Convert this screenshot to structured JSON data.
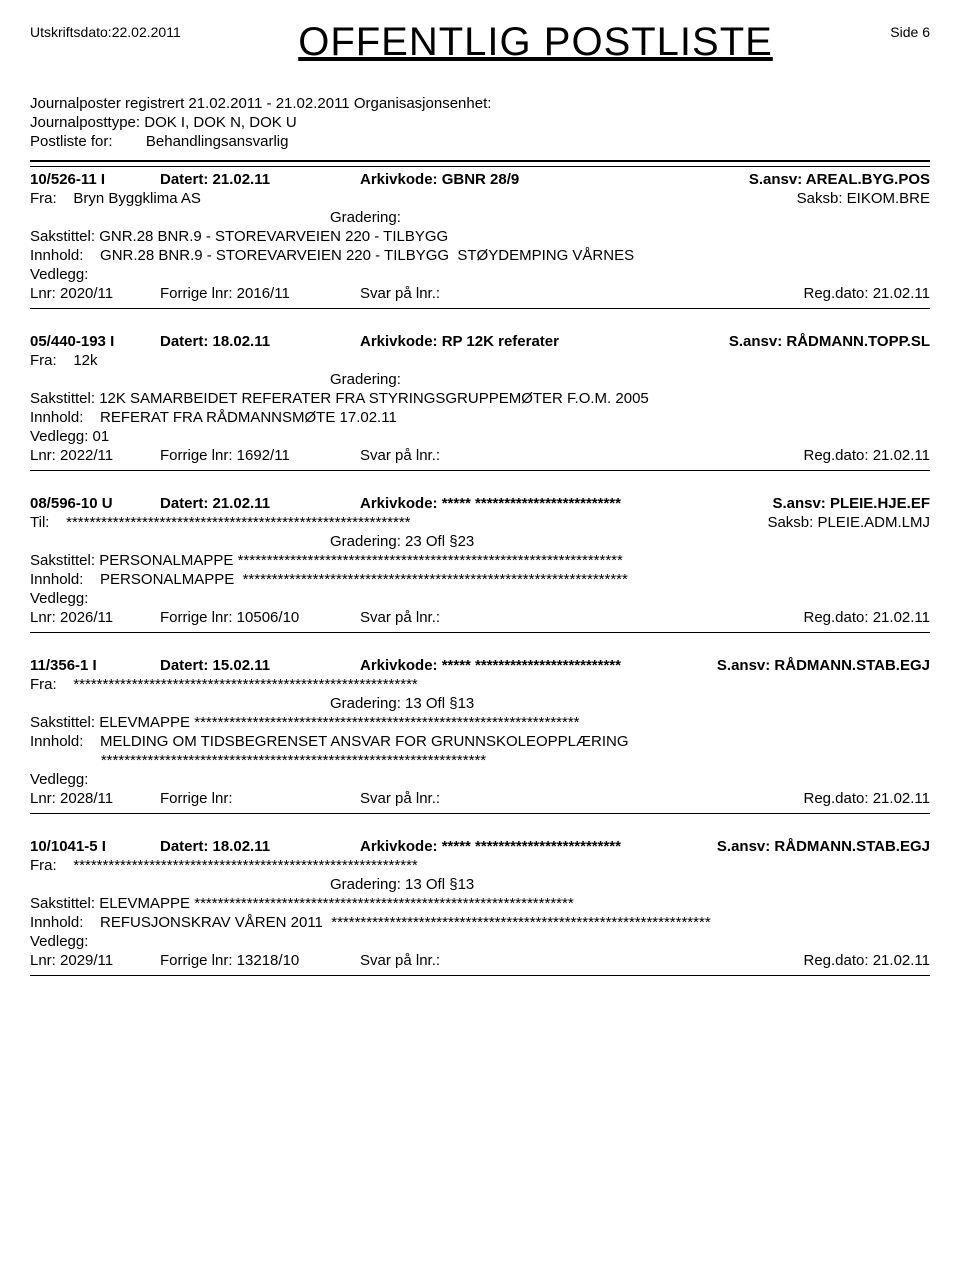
{
  "header": {
    "print_date_label": "Utskriftsdato:",
    "print_date": "22.02.2011",
    "title": "OFFENTLIG POSTLISTE",
    "page_label": "Side 6"
  },
  "meta": {
    "line1": "Journalposter registrert  21.02.2011  -  21.02.2011  Organisasjonsenhet:",
    "line2_label": "Journalposttype:",
    "line2_value": "DOK I, DOK N, DOK U",
    "line3_label": "Postliste for:",
    "line3_value": "Behandlingsansvarlig"
  },
  "entries": [
    {
      "id": "10/526-11  I",
      "datert": "Datert: 21.02.11",
      "arkiv": "Arkivkode: GBNR 28/9",
      "sansv": "S.ansv: AREAL.BYG.POS",
      "from_label": "Fra:",
      "from_value": "Bryn Byggklima AS",
      "saksb": "Saksb:  EIKOM.BRE",
      "gradering": "Gradering:",
      "sakstittel": "Sakstittel: GNR.28 BNR.9 - STOREVARVEIEN 220 - TILBYGG",
      "innhold": "Innhold:    GNR.28 BNR.9 - STOREVARVEIEN 220 - TILBYGG  STØYDEMPING VÅRNES",
      "vedlegg": "Vedlegg:",
      "lnr": "Lnr: 2020/11",
      "forrige": "Forrige lnr: 2016/11",
      "svar": "Svar på lnr.:",
      "regdato": "Reg.dato: 21.02.11"
    },
    {
      "id": "05/440-193  I",
      "datert": "Datert: 18.02.11",
      "arkiv": "Arkivkode: RP 12K referater",
      "sansv": "S.ansv: RÅDMANN.TOPP.SL",
      "from_label": "Fra:",
      "from_value": "12k",
      "saksb": "",
      "gradering": "Gradering:",
      "sakstittel": "Sakstittel: 12K SAMARBEIDET  REFERATER FRA STYRINGSGRUPPEMØTER F.O.M. 2005",
      "innhold": "Innhold:    REFERAT FRA RÅDMANNSMØTE 17.02.11",
      "vedlegg": "Vedlegg:  01",
      "lnr": "Lnr: 2022/11",
      "forrige": "Forrige lnr: 1692/11",
      "svar": "Svar på lnr.:",
      "regdato": "Reg.dato: 21.02.11"
    },
    {
      "id": "08/596-10  U",
      "datert": "Datert: 21.02.11",
      "arkiv": "Arkivkode: ***** *************************",
      "sansv": "S.ansv: PLEIE.HJE.EF",
      "from_label": "Til:",
      "from_value": "***********************************************************",
      "saksb": "Saksb:  PLEIE.ADM.LMJ",
      "gradering": "Gradering: 23 Ofl §23",
      "sakstittel": "Sakstittel: PERSONALMAPPE  ******************************************************************",
      "innhold": "Innhold:    PERSONALMAPPE  ******************************************************************",
      "vedlegg": "Vedlegg:",
      "lnr": "Lnr: 2026/11",
      "forrige": "Forrige lnr: 10506/10",
      "svar": "Svar på lnr.:",
      "regdato": "Reg.dato: 21.02.11"
    },
    {
      "id": "11/356-1  I",
      "datert": "Datert: 15.02.11",
      "arkiv": "Arkivkode: ***** *************************",
      "sansv": "S.ansv: RÅDMANN.STAB.EGJ",
      "from_label": "Fra:",
      "from_value": "***********************************************************",
      "saksb": "",
      "gradering": "Gradering: 13 Ofl §13",
      "sakstittel": "Sakstittel: ELEVMAPPE  ******************************************************************",
      "innhold": "Innhold:    MELDING OM TIDSBEGRENSET ANSVAR FOR GRUNNSKOLEOPPLÆRING",
      "innhold2": "                 ******************************************************************",
      "vedlegg": "Vedlegg:",
      "lnr": "Lnr: 2028/11",
      "forrige": "Forrige lnr:",
      "svar": "Svar på lnr.:",
      "regdato": "Reg.dato: 21.02.11"
    },
    {
      "id": "10/1041-5  I",
      "datert": "Datert: 18.02.11",
      "arkiv": "Arkivkode: ***** *************************",
      "sansv": "S.ansv: RÅDMANN.STAB.EGJ",
      "from_label": "Fra:",
      "from_value": "***********************************************************",
      "saksb": "",
      "gradering": "Gradering: 13 Ofl §13",
      "sakstittel": "Sakstittel: ELEVMAPPE  *****************************************************************",
      "innhold": "Innhold:    REFUSJONSKRAV VÅREN 2011  *****************************************************************",
      "vedlegg": "Vedlegg:",
      "lnr": "Lnr: 2029/11",
      "forrige": "Forrige lnr: 13218/10",
      "svar": "Svar på lnr.:",
      "regdato": "Reg.dato: 21.02.11"
    }
  ]
}
